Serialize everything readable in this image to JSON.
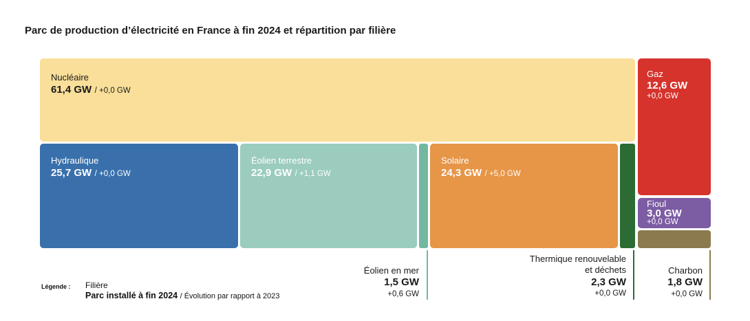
{
  "chart_data": {
    "type": "treemap",
    "title": "Parc de production d’électricité en France à fin 2024 et répartition par filière",
    "unit": "GW",
    "items": [
      {
        "key": "nucleaire",
        "name": "Nucléaire",
        "value": 61.4,
        "value_label": "61,4 GW",
        "delta_label": "+0,0 GW",
        "color": "#F9DF99"
      },
      {
        "key": "hydraulique",
        "name": "Hydraulique",
        "value": 25.7,
        "value_label": "25,7 GW",
        "delta_label": "+0,0 GW",
        "color": "#3970AC"
      },
      {
        "key": "eolien_terrestre",
        "name": "Éolien terrestre",
        "value": 22.9,
        "value_label": "22,9 GW",
        "delta_label": "+1,1 GW",
        "color": "#9BCCBE"
      },
      {
        "key": "eolien_mer",
        "name": "Éolien en mer",
        "value": 1.5,
        "value_label": "1,5 GW",
        "delta_label": "+0,6 GW",
        "color": "#72B8A0"
      },
      {
        "key": "solaire",
        "name": "Solaire",
        "value": 24.3,
        "value_label": "24,3 GW",
        "delta_label": "+5,0 GW",
        "color": "#E79547"
      },
      {
        "key": "thermique_renouvelable",
        "name_line1": "Thermique renouvelable",
        "name_line2": "et déchets",
        "value": 2.3,
        "value_label": "2,3 GW",
        "delta_label": "+0,0 GW",
        "color": "#2D6B35"
      },
      {
        "key": "gaz",
        "name": "Gaz",
        "value": 12.6,
        "value_label": "12,6 GW",
        "delta_label": "+0,0 GW",
        "color": "#D5332C"
      },
      {
        "key": "fioul",
        "name": "Fioul",
        "value": 3.0,
        "value_label": "3,0 GW",
        "delta_label": "+0,0 GW",
        "color": "#7C5CA3"
      },
      {
        "key": "charbon",
        "name": "Charbon",
        "value": 1.8,
        "value_label": "1,8 GW",
        "delta_label": "+0,0 GW",
        "color": "#8A7A4E"
      }
    ],
    "legend": {
      "key_label": "Légende :",
      "line1": "Filière",
      "line2_bold": "Parc installé à fin 2024",
      "line2_rest": "/ Évolution par rapport à 2023"
    }
  }
}
